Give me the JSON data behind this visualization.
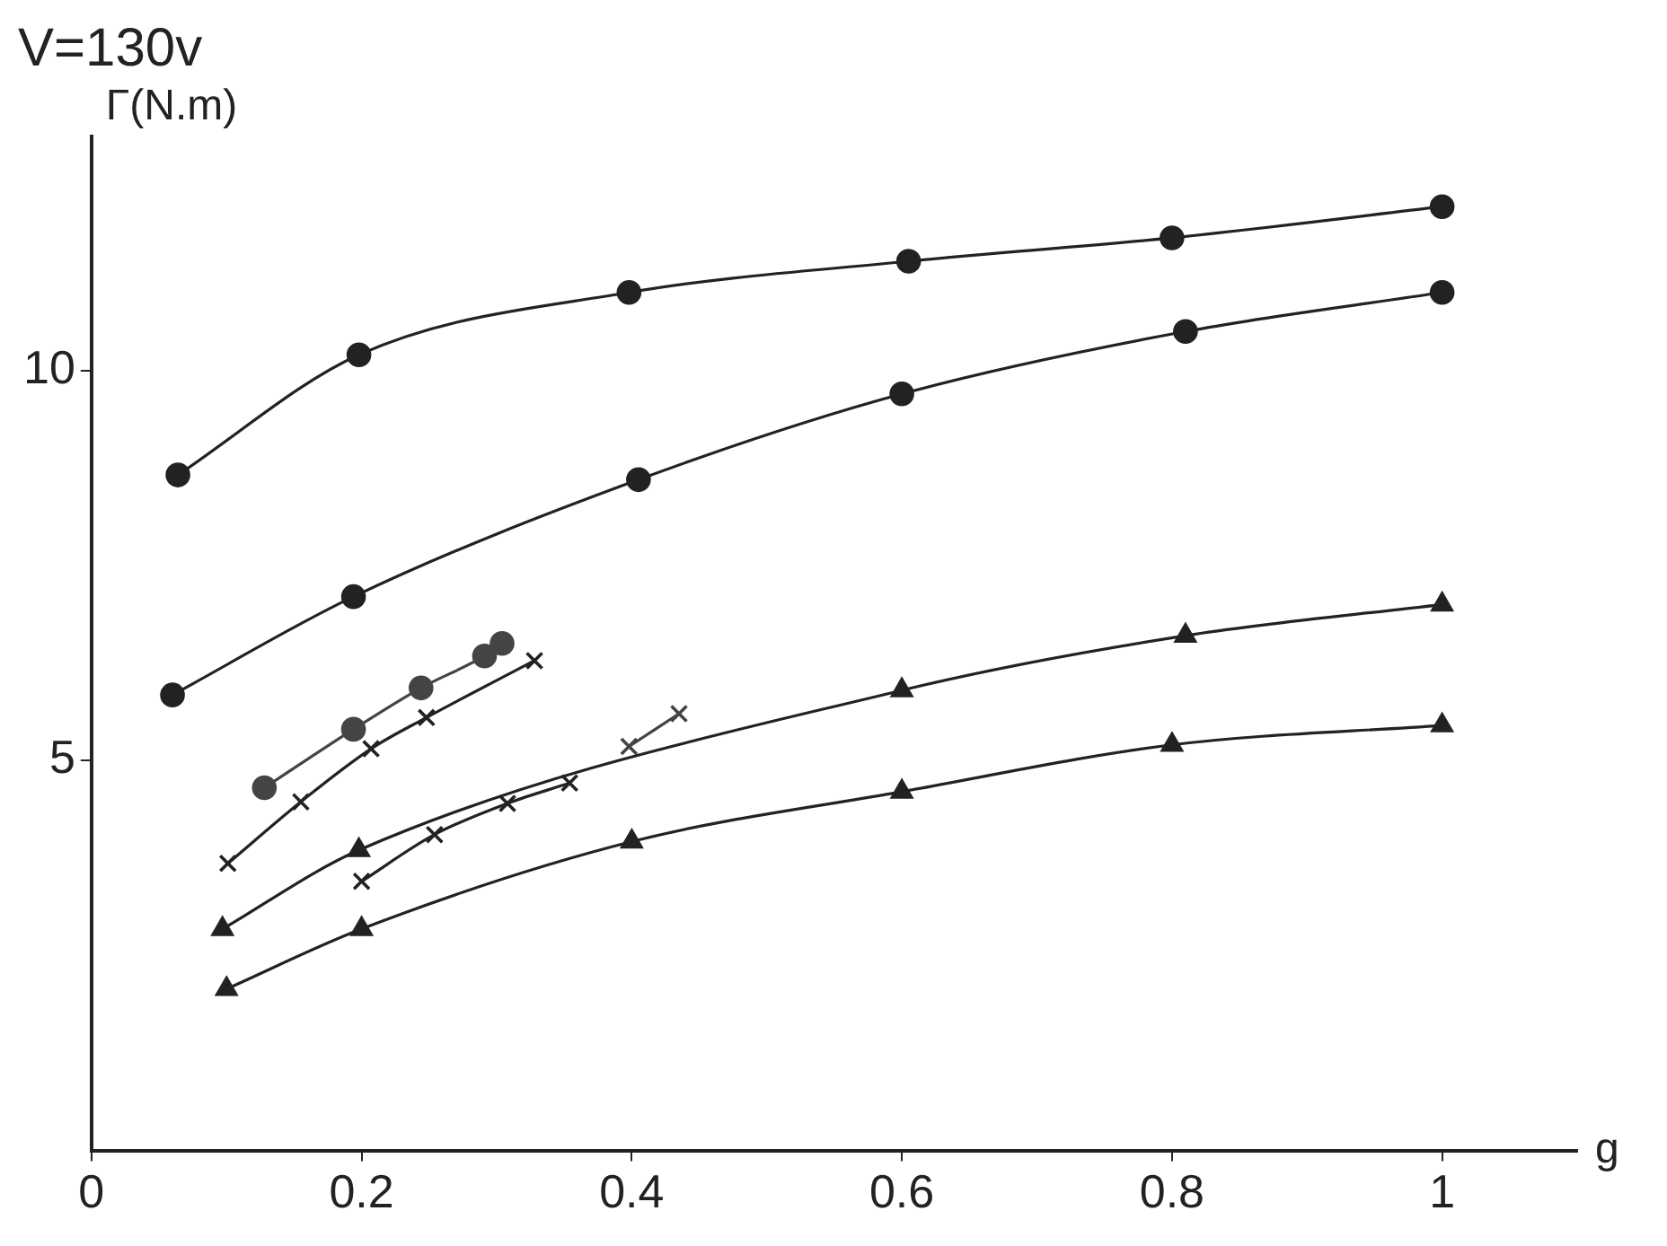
{
  "chart_data": {
    "type": "line",
    "title": "V=130v",
    "xlabel": "g",
    "ylabel": "Γ(N.m)",
    "xlim": [
      0,
      1.1
    ],
    "ylim": [
      0,
      13
    ],
    "xticks": [
      0,
      0.2,
      0.4,
      0.6,
      0.8,
      1
    ],
    "yticks": [
      5,
      10
    ],
    "grid": false,
    "legend": false,
    "line_style": "solid",
    "series": [
      {
        "marker": "circle",
        "color": "#222222",
        "x": [
          0.064,
          0.198,
          0.398,
          0.605,
          0.8,
          1.0
        ],
        "values": [
          8.66,
          10.2,
          11.0,
          11.4,
          11.7,
          12.1
        ]
      },
      {
        "marker": "circle",
        "color": "#222222",
        "x": [
          0.06,
          0.194,
          0.405,
          0.6,
          0.81,
          1.0
        ],
        "values": [
          5.84,
          7.1,
          8.6,
          9.7,
          10.5,
          11.0
        ]
      },
      {
        "marker": "circle",
        "color": "#444444",
        "x": [
          0.128,
          0.194,
          0.244,
          0.291,
          0.304
        ],
        "values": [
          4.65,
          5.4,
          5.93,
          6.34,
          6.5
        ]
      },
      {
        "marker": "cross",
        "color": "#222222",
        "x": [
          0.101,
          0.155,
          0.207,
          0.248,
          0.328
        ],
        "values": [
          3.68,
          4.47,
          5.15,
          5.55,
          6.28
        ]
      },
      {
        "marker": "cross",
        "color": "#222222",
        "x": [
          0.2,
          0.254,
          0.308,
          0.354
        ],
        "values": [
          3.45,
          4.05,
          4.45,
          4.71
        ]
      },
      {
        "marker": "cross",
        "color": "#444444",
        "x": [
          0.398,
          0.435
        ],
        "values": [
          5.18,
          5.6
        ]
      },
      {
        "marker": "triangle",
        "color": "#222222",
        "x": [
          0.097,
          0.198,
          0.6,
          0.81,
          1.0
        ],
        "values": [
          2.84,
          3.85,
          5.9,
          6.6,
          7.0
        ]
      },
      {
        "marker": "triangle",
        "color": "#222222",
        "x": [
          0.1,
          0.2,
          0.4,
          0.6,
          0.8,
          1.0
        ],
        "values": [
          2.07,
          2.84,
          3.96,
          4.6,
          5.2,
          5.45
        ]
      }
    ]
  }
}
